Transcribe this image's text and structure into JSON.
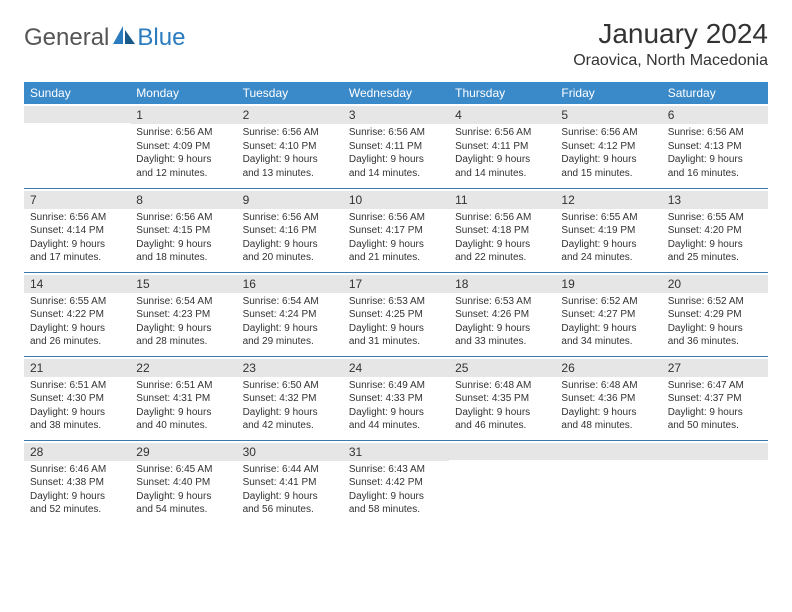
{
  "logo": {
    "general": "General",
    "blue": "Blue"
  },
  "title": "January 2024",
  "location": "Oraovica, North Macedonia",
  "colors": {
    "header_bg": "#3a89c9",
    "header_text": "#ffffff",
    "date_bg": "#e6e6e6",
    "border": "#3a7aa8",
    "text": "#333333",
    "logo_blue": "#2b7bbf"
  },
  "dayHeaders": [
    "Sunday",
    "Monday",
    "Tuesday",
    "Wednesday",
    "Thursday",
    "Friday",
    "Saturday"
  ],
  "weeks": [
    [
      {
        "blank": true
      },
      {
        "num": "1",
        "sunrise": "Sunrise: 6:56 AM",
        "sunset": "Sunset: 4:09 PM",
        "daylight": "Daylight: 9 hours and 12 minutes."
      },
      {
        "num": "2",
        "sunrise": "Sunrise: 6:56 AM",
        "sunset": "Sunset: 4:10 PM",
        "daylight": "Daylight: 9 hours and 13 minutes."
      },
      {
        "num": "3",
        "sunrise": "Sunrise: 6:56 AM",
        "sunset": "Sunset: 4:11 PM",
        "daylight": "Daylight: 9 hours and 14 minutes."
      },
      {
        "num": "4",
        "sunrise": "Sunrise: 6:56 AM",
        "sunset": "Sunset: 4:11 PM",
        "daylight": "Daylight: 9 hours and 14 minutes."
      },
      {
        "num": "5",
        "sunrise": "Sunrise: 6:56 AM",
        "sunset": "Sunset: 4:12 PM",
        "daylight": "Daylight: 9 hours and 15 minutes."
      },
      {
        "num": "6",
        "sunrise": "Sunrise: 6:56 AM",
        "sunset": "Sunset: 4:13 PM",
        "daylight": "Daylight: 9 hours and 16 minutes."
      }
    ],
    [
      {
        "num": "7",
        "sunrise": "Sunrise: 6:56 AM",
        "sunset": "Sunset: 4:14 PM",
        "daylight": "Daylight: 9 hours and 17 minutes."
      },
      {
        "num": "8",
        "sunrise": "Sunrise: 6:56 AM",
        "sunset": "Sunset: 4:15 PM",
        "daylight": "Daylight: 9 hours and 18 minutes."
      },
      {
        "num": "9",
        "sunrise": "Sunrise: 6:56 AM",
        "sunset": "Sunset: 4:16 PM",
        "daylight": "Daylight: 9 hours and 20 minutes."
      },
      {
        "num": "10",
        "sunrise": "Sunrise: 6:56 AM",
        "sunset": "Sunset: 4:17 PM",
        "daylight": "Daylight: 9 hours and 21 minutes."
      },
      {
        "num": "11",
        "sunrise": "Sunrise: 6:56 AM",
        "sunset": "Sunset: 4:18 PM",
        "daylight": "Daylight: 9 hours and 22 minutes."
      },
      {
        "num": "12",
        "sunrise": "Sunrise: 6:55 AM",
        "sunset": "Sunset: 4:19 PM",
        "daylight": "Daylight: 9 hours and 24 minutes."
      },
      {
        "num": "13",
        "sunrise": "Sunrise: 6:55 AM",
        "sunset": "Sunset: 4:20 PM",
        "daylight": "Daylight: 9 hours and 25 minutes."
      }
    ],
    [
      {
        "num": "14",
        "sunrise": "Sunrise: 6:55 AM",
        "sunset": "Sunset: 4:22 PM",
        "daylight": "Daylight: 9 hours and 26 minutes."
      },
      {
        "num": "15",
        "sunrise": "Sunrise: 6:54 AM",
        "sunset": "Sunset: 4:23 PM",
        "daylight": "Daylight: 9 hours and 28 minutes."
      },
      {
        "num": "16",
        "sunrise": "Sunrise: 6:54 AM",
        "sunset": "Sunset: 4:24 PM",
        "daylight": "Daylight: 9 hours and 29 minutes."
      },
      {
        "num": "17",
        "sunrise": "Sunrise: 6:53 AM",
        "sunset": "Sunset: 4:25 PM",
        "daylight": "Daylight: 9 hours and 31 minutes."
      },
      {
        "num": "18",
        "sunrise": "Sunrise: 6:53 AM",
        "sunset": "Sunset: 4:26 PM",
        "daylight": "Daylight: 9 hours and 33 minutes."
      },
      {
        "num": "19",
        "sunrise": "Sunrise: 6:52 AM",
        "sunset": "Sunset: 4:27 PM",
        "daylight": "Daylight: 9 hours and 34 minutes."
      },
      {
        "num": "20",
        "sunrise": "Sunrise: 6:52 AM",
        "sunset": "Sunset: 4:29 PM",
        "daylight": "Daylight: 9 hours and 36 minutes."
      }
    ],
    [
      {
        "num": "21",
        "sunrise": "Sunrise: 6:51 AM",
        "sunset": "Sunset: 4:30 PM",
        "daylight": "Daylight: 9 hours and 38 minutes."
      },
      {
        "num": "22",
        "sunrise": "Sunrise: 6:51 AM",
        "sunset": "Sunset: 4:31 PM",
        "daylight": "Daylight: 9 hours and 40 minutes."
      },
      {
        "num": "23",
        "sunrise": "Sunrise: 6:50 AM",
        "sunset": "Sunset: 4:32 PM",
        "daylight": "Daylight: 9 hours and 42 minutes."
      },
      {
        "num": "24",
        "sunrise": "Sunrise: 6:49 AM",
        "sunset": "Sunset: 4:33 PM",
        "daylight": "Daylight: 9 hours and 44 minutes."
      },
      {
        "num": "25",
        "sunrise": "Sunrise: 6:48 AM",
        "sunset": "Sunset: 4:35 PM",
        "daylight": "Daylight: 9 hours and 46 minutes."
      },
      {
        "num": "26",
        "sunrise": "Sunrise: 6:48 AM",
        "sunset": "Sunset: 4:36 PM",
        "daylight": "Daylight: 9 hours and 48 minutes."
      },
      {
        "num": "27",
        "sunrise": "Sunrise: 6:47 AM",
        "sunset": "Sunset: 4:37 PM",
        "daylight": "Daylight: 9 hours and 50 minutes."
      }
    ],
    [
      {
        "num": "28",
        "sunrise": "Sunrise: 6:46 AM",
        "sunset": "Sunset: 4:38 PM",
        "daylight": "Daylight: 9 hours and 52 minutes."
      },
      {
        "num": "29",
        "sunrise": "Sunrise: 6:45 AM",
        "sunset": "Sunset: 4:40 PM",
        "daylight": "Daylight: 9 hours and 54 minutes."
      },
      {
        "num": "30",
        "sunrise": "Sunrise: 6:44 AM",
        "sunset": "Sunset: 4:41 PM",
        "daylight": "Daylight: 9 hours and 56 minutes."
      },
      {
        "num": "31",
        "sunrise": "Sunrise: 6:43 AM",
        "sunset": "Sunset: 4:42 PM",
        "daylight": "Daylight: 9 hours and 58 minutes."
      },
      {
        "blank": true
      },
      {
        "blank": true
      },
      {
        "blank": true
      }
    ]
  ]
}
